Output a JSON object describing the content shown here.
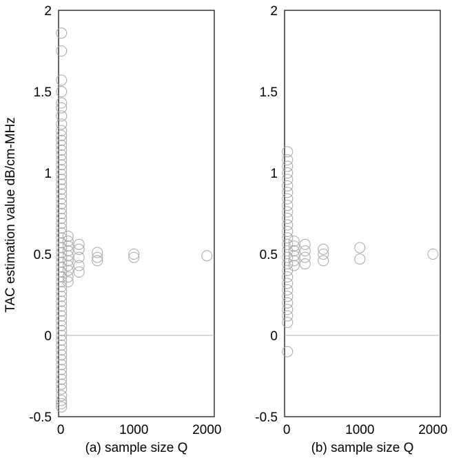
{
  "y_axis_label": "TAC estimation value dB/cm-MHz",
  "chart_data": [
    {
      "type": "scatter",
      "xlabel": "(a)  sample size Q",
      "ylabel": "TAC estimation value dB/cm-MHz",
      "xlim": [
        -30,
        2100
      ],
      "ylim": [
        -0.5,
        2
      ],
      "xticks": [
        "0",
        "1000",
        "2000"
      ],
      "yticks": [
        "-0.5",
        "0",
        "0.5",
        "1",
        "1.5",
        "2"
      ],
      "reference_line_y": 0,
      "marker": "open-circle",
      "marker_color": "#a6a6a6",
      "series": [
        {
          "x": 10,
          "y": [
            -0.44,
            -0.42,
            -0.4,
            -0.37,
            -0.33,
            -0.3,
            -0.27,
            -0.24,
            -0.21,
            -0.18,
            -0.15,
            -0.12,
            -0.09,
            -0.06,
            -0.03,
            0.0,
            0.03,
            0.06,
            0.09,
            0.12,
            0.15,
            0.18,
            0.21,
            0.24,
            0.27,
            0.3,
            0.33,
            0.36,
            0.39,
            0.42,
            0.45,
            0.48,
            0.51,
            0.54,
            0.57,
            0.6,
            0.63,
            0.66,
            0.69,
            0.72,
            0.75,
            0.78,
            0.81,
            0.84,
            0.87,
            0.9,
            0.93,
            0.96,
            0.99,
            1.02,
            1.05,
            1.08,
            1.11,
            1.14,
            1.17,
            1.2,
            1.23,
            1.26,
            1.3,
            1.35,
            1.4,
            1.43,
            1.5,
            1.57,
            1.75,
            1.86
          ]
        },
        {
          "x": 100,
          "y": [
            0.33,
            0.36,
            0.4,
            0.43,
            0.46,
            0.49,
            0.52,
            0.55,
            0.58,
            0.61
          ]
        },
        {
          "x": 250,
          "y": [
            0.39,
            0.43,
            0.48,
            0.53,
            0.56
          ]
        },
        {
          "x": 500,
          "y": [
            0.46,
            0.48,
            0.51
          ]
        },
        {
          "x": 1000,
          "y": [
            0.48,
            0.5
          ]
        },
        {
          "x": 2000,
          "y": [
            0.49
          ]
        }
      ]
    },
    {
      "type": "scatter",
      "xlabel": "(b)  sample size Q",
      "xlim": [
        -30,
        2100
      ],
      "ylim": [
        -0.5,
        2
      ],
      "xticks": [
        "0",
        "1000",
        "2000"
      ],
      "yticks": [
        "-0.5",
        "0",
        "0.5",
        "1",
        "1.5",
        "2"
      ],
      "reference_line_y": 0,
      "marker": "open-circle",
      "marker_color": "#a6a6a6",
      "series": [
        {
          "x": 10,
          "y": [
            -0.1,
            0.08,
            0.12,
            0.16,
            0.2,
            0.24,
            0.28,
            0.32,
            0.36,
            0.4,
            0.44,
            0.48,
            0.52,
            0.56,
            0.6,
            0.64,
            0.68,
            0.72,
            0.76,
            0.8,
            0.84,
            0.88,
            0.92,
            0.96,
            1.0,
            1.04,
            1.08,
            1.13
          ]
        },
        {
          "x": 100,
          "y": [
            0.43,
            0.46,
            0.49,
            0.52,
            0.55,
            0.58
          ]
        },
        {
          "x": 250,
          "y": [
            0.44,
            0.48,
            0.52,
            0.56
          ]
        },
        {
          "x": 500,
          "y": [
            0.46,
            0.5,
            0.53
          ]
        },
        {
          "x": 1000,
          "y": [
            0.47,
            0.54
          ]
        },
        {
          "x": 2000,
          "y": [
            0.5
          ]
        }
      ]
    }
  ]
}
